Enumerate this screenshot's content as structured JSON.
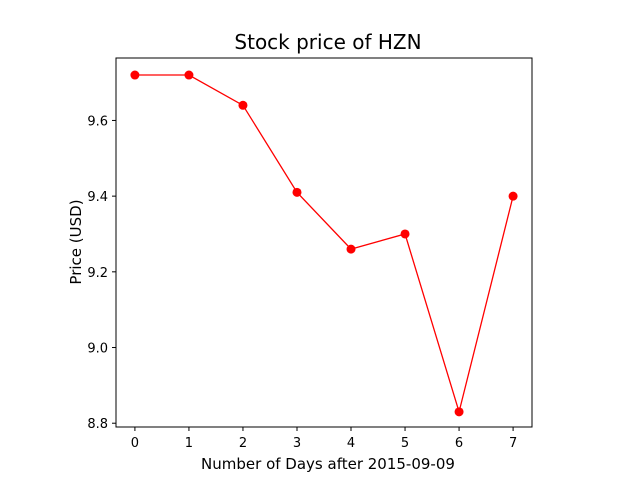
{
  "chart_data": {
    "type": "line",
    "title": "Stock price of HZN",
    "xlabel": "Number of Days after 2015-09-09",
    "ylabel": "Price (USD)",
    "x": [
      0,
      1,
      2,
      3,
      4,
      5,
      6,
      7
    ],
    "series": [
      {
        "values": [
          9.72,
          9.72,
          9.64,
          9.41,
          9.26,
          9.3,
          8.83,
          9.4
        ],
        "color": "#ff0000",
        "marker": "circle"
      }
    ],
    "xticks": [
      "0",
      "1",
      "2",
      "3",
      "4",
      "5",
      "6",
      "7"
    ],
    "yticks": [
      "8.8",
      "9.0",
      "9.2",
      "9.4",
      "9.6"
    ],
    "xlim": [
      -0.35,
      7.35
    ],
    "ylim": [
      8.79,
      9.765
    ],
    "grid": false,
    "legend": "none"
  }
}
